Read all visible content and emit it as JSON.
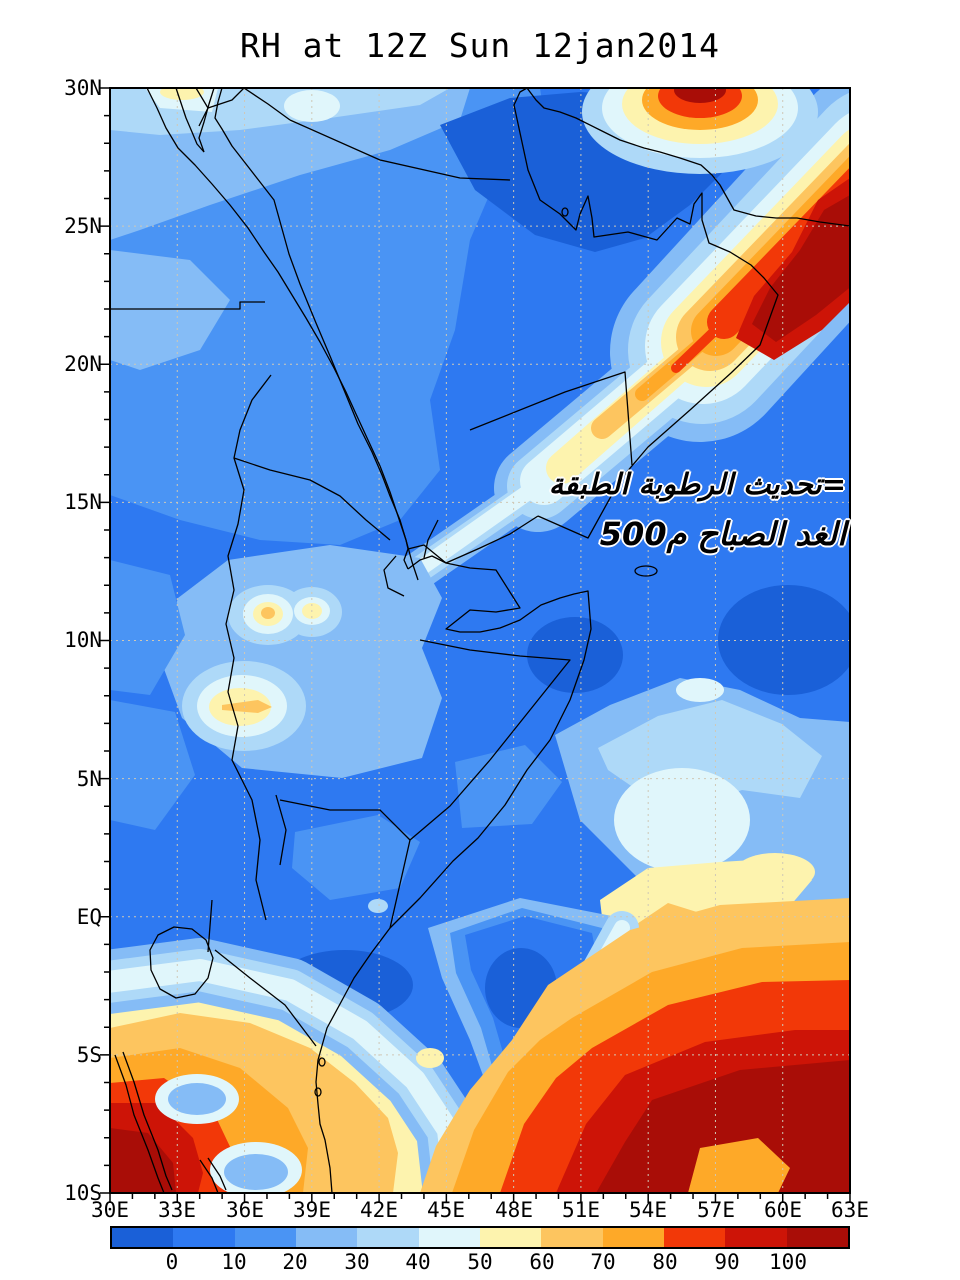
{
  "title": "RH at 12Z Sun 12jan2014",
  "annotation": {
    "line1": "=تحديث الرطوبة الطبقة",
    "line2": "الغد الصباح م500"
  },
  "axes": {
    "lat_labels": [
      "30N",
      "25N",
      "20N",
      "15N",
      "10N",
      "5N",
      "EQ",
      "5S",
      "10S"
    ],
    "lon_labels": [
      "30E",
      "33E",
      "36E",
      "39E",
      "42E",
      "45E",
      "48E",
      "51E",
      "54E",
      "57E",
      "60E",
      "63E"
    ]
  },
  "colorbar": {
    "labels": [
      "0",
      "10",
      "20",
      "30",
      "40",
      "50",
      "60",
      "70",
      "80",
      "90",
      "100"
    ],
    "colors": [
      "#1a60d8",
      "#2e79f1",
      "#4a94f4",
      "#85bcf6",
      "#aed9f8",
      "#e0f6fb",
      "#fdf3ae",
      "#fdc55f",
      "#fea928",
      "#f23808",
      "#cd1407",
      "#a90d07"
    ]
  },
  "chart_data": {
    "type": "heatmap",
    "title": "RH at 12Z Sun 12jan2014",
    "variable": "Relative Humidity (%)",
    "valid_time": "12Z Sun 12jan2014",
    "x_axis": {
      "ticks": [
        "30E",
        "33E",
        "36E",
        "39E",
        "42E",
        "45E",
        "48E",
        "51E",
        "54E",
        "57E",
        "60E",
        "63E"
      ],
      "range_deg_east": [
        30,
        63
      ]
    },
    "y_axis": {
      "ticks": [
        "30N",
        "25N",
        "20N",
        "15N",
        "10N",
        "5N",
        "EQ",
        "5S",
        "10S"
      ],
      "range_deg_north": [
        -10,
        30
      ]
    },
    "levels": [
      0,
      10,
      20,
      30,
      40,
      50,
      60,
      70,
      80,
      90,
      100
    ],
    "palette": [
      "#1a60d8",
      "#2e79f1",
      "#4a94f4",
      "#85bcf6",
      "#aed9f8",
      "#e0f6fb",
      "#fdf3ae",
      "#fdc55f",
      "#fea928",
      "#f23808",
      "#cd1407",
      "#a90d07"
    ],
    "legend_position": "horizontal colorbar at bottom",
    "grid": "dashed graticule every 3 deg lon x 5 deg lat",
    "basemap": "coastlines and country borders, Horn of Africa / Arabian Peninsula",
    "annotation_text": [
      "=تحديث الرطوبة الطبقة",
      "الغد الصباح م500"
    ],
    "features": [
      {
        "value_range": "80-100+",
        "region": "diagonal humid band over Gulf of Oman / NE Arabian Sea from ~63E,23N toward ~52E,13N"
      },
      {
        "value_range": "80-100+",
        "region": "spot on north edge near 50-52E,30N"
      },
      {
        "value_range": "0-20",
        "region": "most of Arabian Peninsula, Egypt, Sudan, Somalia interior"
      },
      {
        "value_range": "50-75",
        "region": "small local maxima over western Ethiopia ~36-39E,8-11N"
      },
      {
        "value_range": "30-60",
        "region": "wedge along Somali east coast ~51-63E,4-9N"
      },
      {
        "value_range": "20-40",
        "region": "blue tongue ~44-49E from 1N to 5S"
      },
      {
        "value_range": "60-100+",
        "region": "broad humid zone south of ~3S; maxima >100 near 55-63E,5-10S and near 30-32E,8-10S"
      }
    ]
  }
}
